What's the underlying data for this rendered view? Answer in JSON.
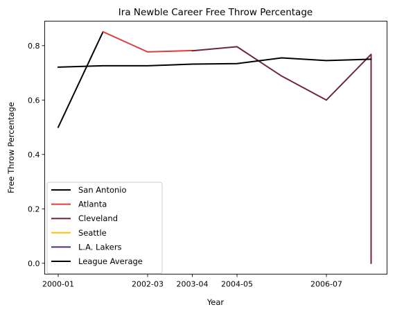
{
  "chart_data": {
    "type": "line",
    "title": "Ira Newble Career Free Throw Percentage",
    "xlabel": "Year",
    "ylabel": "Free Throw Percentage",
    "x_tick_labels": [
      "2000-01",
      "2002-03",
      "2003-04",
      "2004-05",
      "2006-07"
    ],
    "y_ticks": [
      0.0,
      0.2,
      0.4,
      0.6,
      0.8
    ],
    "y_tick_labels": [
      "0.0",
      "0.2",
      "0.4",
      "0.6",
      "0.8"
    ],
    "ylim": [
      -0.04,
      0.89
    ],
    "grid": false,
    "legend_position": "lower-left",
    "series": [
      {
        "name": "San Antonio",
        "color": "#000000",
        "points": [
          [
            "2000-01",
            0.5
          ],
          [
            "2001-02",
            0.85
          ]
        ]
      },
      {
        "name": "Atlanta",
        "color": "#e03a3e",
        "points": [
          [
            "2001-02",
            0.851
          ],
          [
            "2002-03",
            0.777
          ],
          [
            "2003-04",
            0.782
          ]
        ]
      },
      {
        "name": "Cleveland",
        "color": "#6f263d",
        "points": [
          [
            "2003-04",
            0.781
          ],
          [
            "2004-05",
            0.796
          ],
          [
            "2005-06",
            0.688
          ],
          [
            "2006-07",
            0.6
          ],
          [
            "2007-08",
            0.768
          ],
          [
            "2007-08",
            0.0
          ]
        ]
      },
      {
        "name": "Seattle",
        "color": "#ffc200",
        "points": []
      },
      {
        "name": "L.A. Lakers",
        "color": "#552583",
        "points": []
      },
      {
        "name": "League Average",
        "color": "#000000",
        "points": [
          [
            "2000-01",
            0.721
          ],
          [
            "2001-02",
            0.726
          ],
          [
            "2002-03",
            0.726
          ],
          [
            "2003-04",
            0.732
          ],
          [
            "2004-05",
            0.734
          ],
          [
            "2005-06",
            0.755
          ],
          [
            "2006-07",
            0.745
          ],
          [
            "2007-08",
            0.75
          ]
        ]
      }
    ]
  }
}
